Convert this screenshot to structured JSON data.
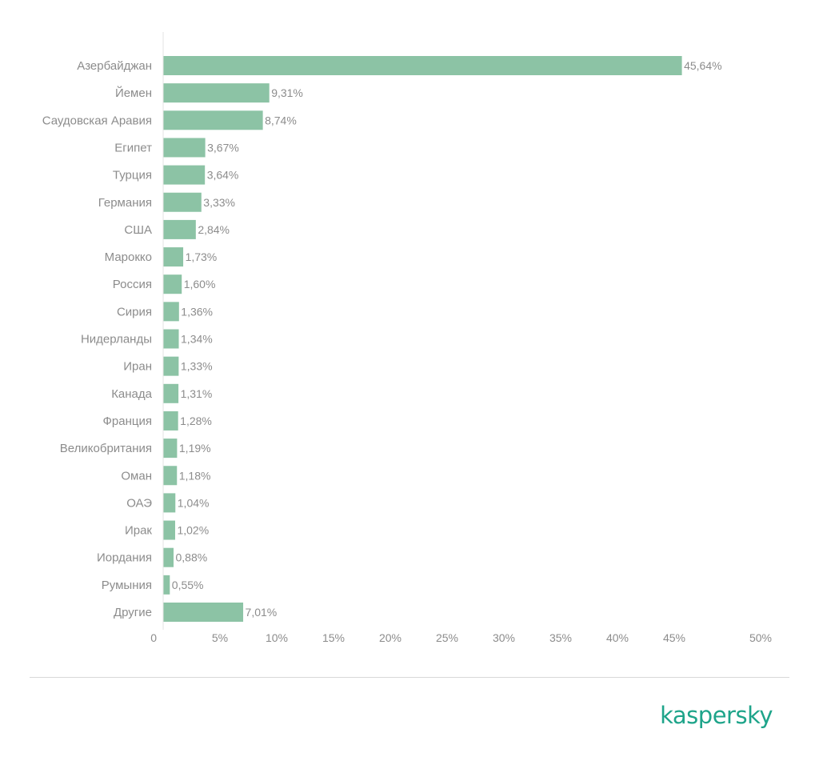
{
  "chart_data": {
    "type": "bar",
    "orientation": "horizontal",
    "categories": [
      "Азербайджан",
      "Йемен",
      "Саудовская Аравия",
      "Египет",
      "Турция",
      "Германия",
      "США",
      "Марокко",
      "Россия",
      "Сирия",
      "Нидерланды",
      "Иран",
      "Канада",
      "Франция",
      "Великобритания",
      "Оман",
      "ОАЭ",
      "Ирак",
      "Иордания",
      "Румыния",
      "Другие"
    ],
    "values": [
      45.64,
      9.31,
      8.74,
      3.67,
      3.64,
      3.33,
      2.84,
      1.73,
      1.6,
      1.36,
      1.34,
      1.33,
      1.31,
      1.28,
      1.19,
      1.18,
      1.04,
      1.02,
      0.88,
      0.55,
      7.01
    ],
    "value_labels": [
      "45,64%",
      "9,31%",
      "8,74%",
      "3,67%",
      "3,64%",
      "3,33%",
      "2,84%",
      "1,73%",
      "1,60%",
      "1,36%",
      "1,34%",
      "1,33%",
      "1,31%",
      "1,28%",
      "1,19%",
      "1,18%",
      "1,04%",
      "1,02%",
      "0,88%",
      "0,55%",
      "7,01%"
    ],
    "xlim": [
      0,
      50
    ],
    "x_ticks": [
      0,
      5,
      10,
      15,
      20,
      25,
      30,
      35,
      40,
      45,
      50
    ],
    "x_tick_labels": [
      "0",
      "5%",
      "10%",
      "15%",
      "20%",
      "25%",
      "30%",
      "35%",
      "40%",
      "45%",
      "50%"
    ],
    "grid": false,
    "legend": "none",
    "title": "",
    "xlabel": "",
    "ylabel": ""
  },
  "colors": {
    "bar": "#8cc3a5",
    "label_text": "#8c8c8c",
    "axis_line": "#e3e3e3",
    "brand": "#1ea48a"
  },
  "brand": {
    "logo_text": "kaspersky"
  }
}
